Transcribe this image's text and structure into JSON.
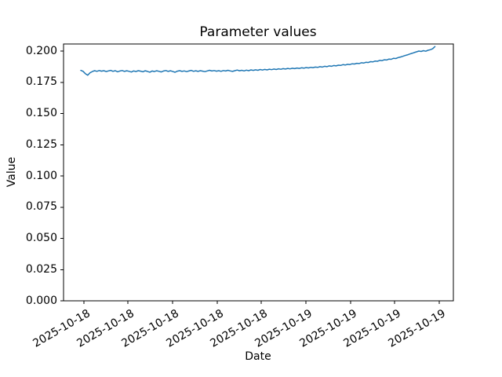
{
  "chart_data": {
    "type": "line",
    "title": "Parameter values",
    "xlabel": "Date",
    "ylabel": "Value",
    "grid": false,
    "legend_position": "none",
    "line_color": "#1f77b4",
    "axis_color": "#000000",
    "background_color": "#ffffff",
    "ylim": [
      0.0,
      0.2056
    ],
    "y_tick_values": [
      0.0,
      0.025,
      0.05,
      0.075,
      0.1,
      0.125,
      0.15,
      0.175,
      0.2
    ],
    "y_tick_labels": [
      "0.000",
      "0.025",
      "0.050",
      "0.075",
      "0.100",
      "0.125",
      "0.150",
      "0.175",
      "0.200"
    ],
    "x_tick_labels": [
      "2025-10-18",
      "2025-10-18",
      "2025-10-18",
      "2025-10-18",
      "2025-10-18",
      "2025-10-19",
      "2025-10-19",
      "2025-10-19",
      "2025-10-19"
    ],
    "values": [
      0.1845,
      0.1838,
      0.1818,
      0.1806,
      0.1826,
      0.1836,
      0.1843,
      0.1838,
      0.1844,
      0.1839,
      0.1843,
      0.1836,
      0.1841,
      0.1845,
      0.1838,
      0.1843,
      0.1834,
      0.184,
      0.1844,
      0.1837,
      0.1842,
      0.1838,
      0.1832,
      0.1841,
      0.1836,
      0.1843,
      0.1839,
      0.1834,
      0.1842,
      0.1837,
      0.1831,
      0.184,
      0.1836,
      0.1842,
      0.1838,
      0.1833,
      0.184,
      0.1844,
      0.1837,
      0.1842,
      0.1836,
      0.183,
      0.1839,
      0.1843,
      0.1837,
      0.1841,
      0.1835,
      0.184,
      0.1845,
      0.1838,
      0.1842,
      0.1837,
      0.1843,
      0.1839,
      0.1835,
      0.1841,
      0.1846,
      0.184,
      0.1844,
      0.1839,
      0.1843,
      0.1838,
      0.1844,
      0.184,
      0.1846,
      0.1841,
      0.1837,
      0.1843,
      0.1848,
      0.1842,
      0.1846,
      0.1841,
      0.1847,
      0.1843,
      0.1849,
      0.1845,
      0.185,
      0.1846,
      0.1852,
      0.1848,
      0.1853,
      0.1849,
      0.1855,
      0.1851,
      0.1856,
      0.1852,
      0.1858,
      0.1854,
      0.1859,
      0.1856,
      0.1861,
      0.1857,
      0.1862,
      0.1859,
      0.1864,
      0.1861,
      0.1866,
      0.1863,
      0.1868,
      0.1865,
      0.187,
      0.1867,
      0.1872,
      0.1869,
      0.1875,
      0.1872,
      0.1878,
      0.1875,
      0.1881,
      0.1878,
      0.1884,
      0.1881,
      0.1887,
      0.1885,
      0.1891,
      0.1888,
      0.1894,
      0.1892,
      0.1898,
      0.1896,
      0.1902,
      0.19,
      0.1906,
      0.1904,
      0.191,
      0.1908,
      0.1915,
      0.1913,
      0.192,
      0.1918,
      0.1925,
      0.1923,
      0.193,
      0.1928,
      0.1936,
      0.1934,
      0.1942,
      0.194,
      0.1948,
      0.1952,
      0.1958,
      0.1964,
      0.1969,
      0.1976,
      0.1982,
      0.1988,
      0.1994,
      0.2,
      0.1997,
      0.2003,
      0.1999,
      0.2006,
      0.2011,
      0.2018,
      0.2036
    ]
  }
}
